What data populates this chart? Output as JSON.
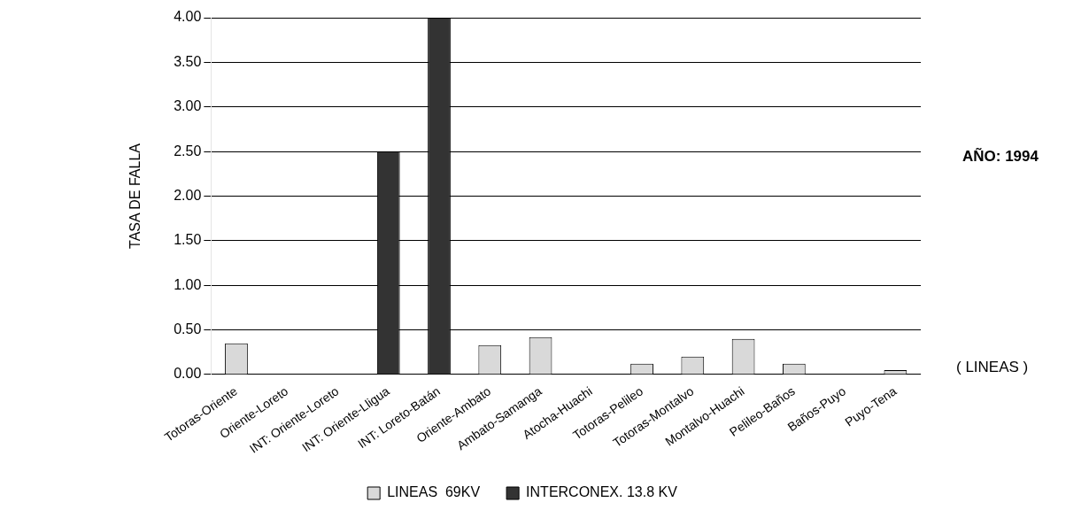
{
  "chart_data": {
    "type": "bar",
    "ylabel": "TASA DE FALLA",
    "categories": [
      "Totoras-Oriente",
      "Oriente-Loreto",
      "INT: Oriente-Loreto",
      "INT: Oriente-Lligua",
      "INT: Loreto-Batán",
      "Oriente-Ambato",
      "Ambato-Samanga",
      "Atocha-Huachi",
      "Totoras-Pelileo",
      "Totoras-Montalvo",
      "Montalvo-Huachi",
      "Pelileo-Baños",
      "Baños-Puyo",
      "Puyo-Tena"
    ],
    "series": [
      {
        "name": "LINEAS  69KV",
        "color": "#d9d9d9",
        "values": [
          0.35,
          0,
          null,
          null,
          null,
          0.33,
          0.42,
          0,
          0.12,
          0.2,
          0.4,
          0.12,
          0,
          0.05
        ]
      },
      {
        "name": "INTERCONEX. 13.8 KV",
        "color": "#333333",
        "values": [
          null,
          null,
          0,
          2.5,
          4.0,
          null,
          null,
          null,
          null,
          null,
          null,
          null,
          null,
          null
        ]
      }
    ],
    "ylim": [
      0,
      4
    ],
    "yticks": [
      {
        "value": 0,
        "label": "0.00"
      },
      {
        "value": 0.5,
        "label": "0.50"
      },
      {
        "value": 1,
        "label": "1.00"
      },
      {
        "value": 1.5,
        "label": "1.50"
      },
      {
        "value": 2,
        "label": "2.00"
      },
      {
        "value": 2.5,
        "label": "2.50"
      },
      {
        "value": 3,
        "label": "3.00"
      },
      {
        "value": 3.5,
        "label": "3.50"
      },
      {
        "value": 4,
        "label": "4.00"
      }
    ],
    "grid": "y",
    "legend": "bottom",
    "annotations": [
      "AÑO: 1994",
      "( LINEAS )"
    ]
  }
}
